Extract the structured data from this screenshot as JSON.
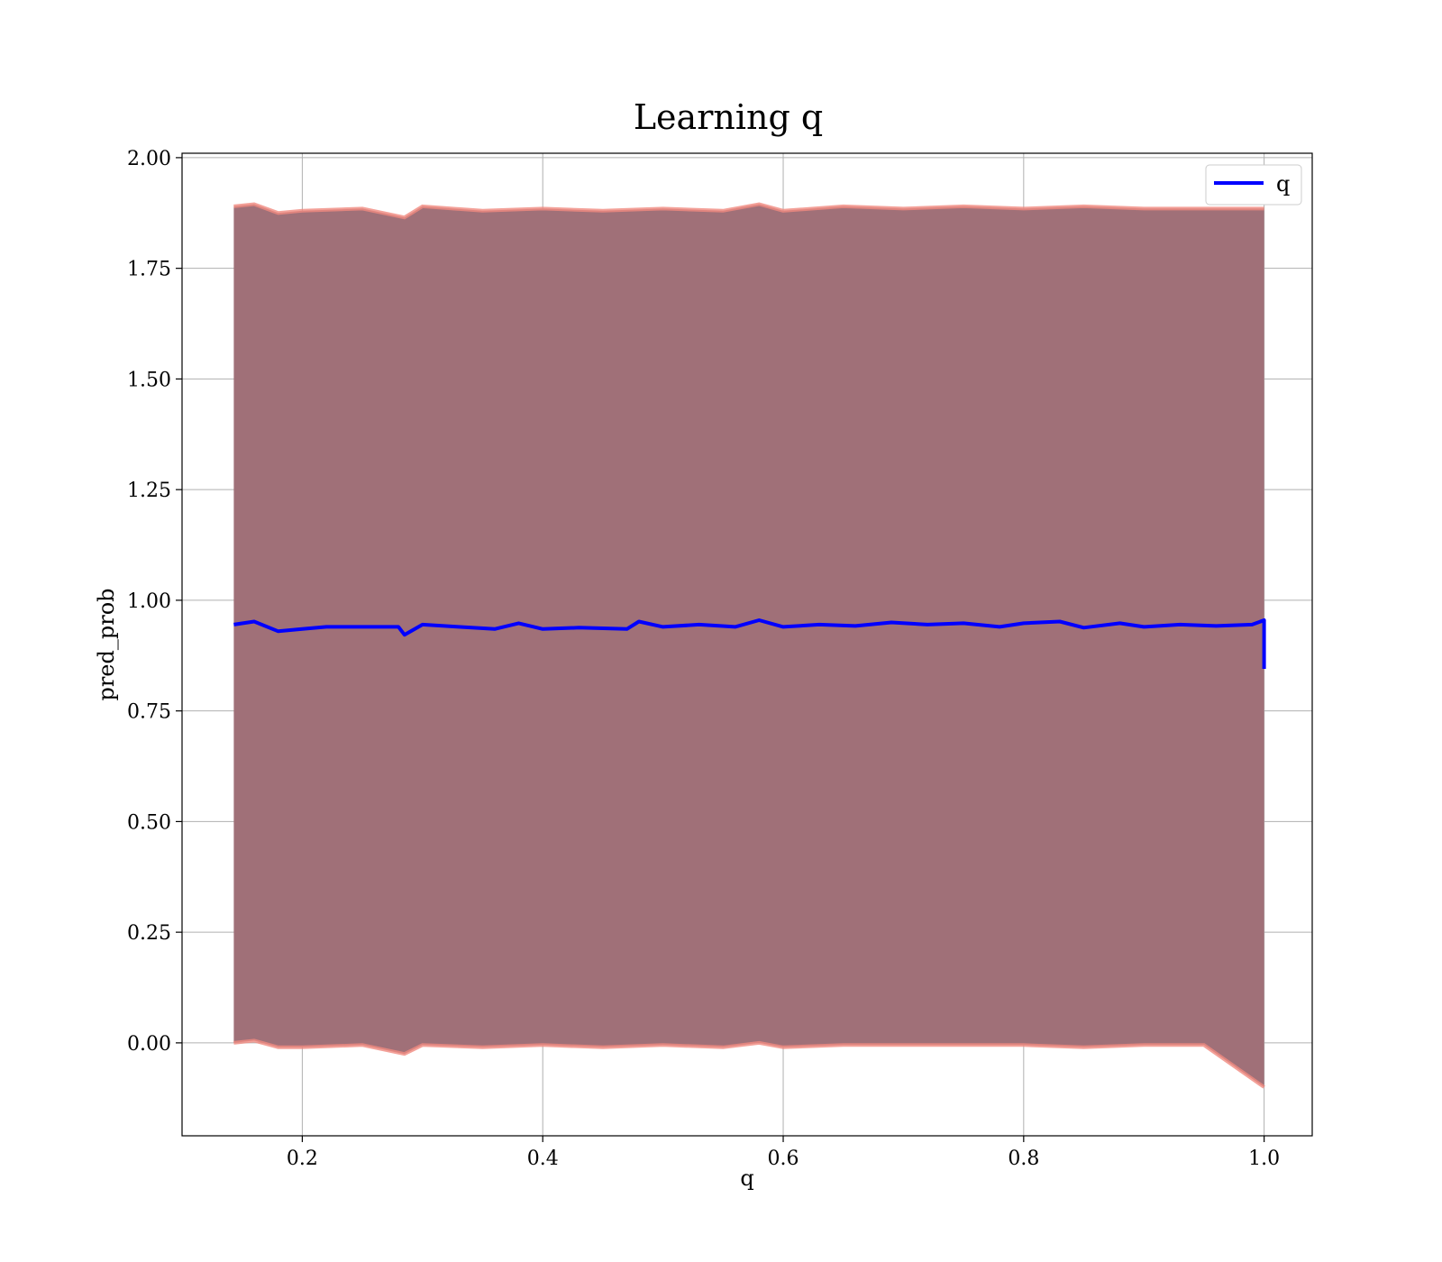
{
  "chart_data": {
    "type": "line",
    "title": "Learning q",
    "xlabel": "q",
    "ylabel": "pred_prob",
    "xlim": [
      0.1,
      1.04
    ],
    "ylim": [
      -0.21,
      2.01
    ],
    "xticks": [
      0.2,
      0.4,
      0.6,
      0.8,
      1.0
    ],
    "xtick_labels": [
      "0.2",
      "0.4",
      "0.6",
      "0.8",
      "1.0"
    ],
    "yticks": [
      0.0,
      0.25,
      0.5,
      0.75,
      1.0,
      1.25,
      1.5,
      1.75,
      2.0
    ],
    "ytick_labels": [
      "0.00",
      "0.25",
      "0.50",
      "0.75",
      "1.00",
      "1.25",
      "1.50",
      "1.75",
      "2.00"
    ],
    "grid": true,
    "legend": {
      "position": "top-right",
      "entries": [
        "q"
      ]
    },
    "colors": {
      "line": "#0000ff",
      "band_fill": "#a07078",
      "band_edge": "#f08a80",
      "grid": "#b0b0b0"
    },
    "series": [
      {
        "name": "q",
        "x": [
          0.143,
          0.16,
          0.18,
          0.2,
          0.22,
          0.25,
          0.28,
          0.285,
          0.3,
          0.33,
          0.36,
          0.38,
          0.4,
          0.43,
          0.47,
          0.48,
          0.5,
          0.53,
          0.56,
          0.58,
          0.6,
          0.63,
          0.66,
          0.69,
          0.72,
          0.75,
          0.78,
          0.8,
          0.83,
          0.85,
          0.88,
          0.9,
          0.93,
          0.96,
          0.99,
          1.0,
          1.0
        ],
        "y": [
          0.945,
          0.952,
          0.93,
          0.935,
          0.94,
          0.94,
          0.94,
          0.922,
          0.945,
          0.94,
          0.935,
          0.948,
          0.935,
          0.938,
          0.935,
          0.952,
          0.94,
          0.945,
          0.94,
          0.955,
          0.94,
          0.945,
          0.942,
          0.95,
          0.945,
          0.948,
          0.94,
          0.948,
          0.952,
          0.938,
          0.948,
          0.94,
          0.945,
          0.942,
          0.945,
          0.955,
          0.845
        ]
      }
    ],
    "band": {
      "x": [
        0.143,
        0.16,
        0.18,
        0.2,
        0.25,
        0.285,
        0.3,
        0.35,
        0.4,
        0.45,
        0.5,
        0.55,
        0.58,
        0.6,
        0.65,
        0.7,
        0.75,
        0.8,
        0.85,
        0.9,
        0.95,
        1.0
      ],
      "upper": [
        1.89,
        1.895,
        1.875,
        1.88,
        1.885,
        1.865,
        1.89,
        1.88,
        1.885,
        1.88,
        1.885,
        1.88,
        1.895,
        1.88,
        1.89,
        1.885,
        1.89,
        1.885,
        1.89,
        1.885,
        1.885,
        1.885
      ],
      "lower": [
        0.0,
        0.005,
        -0.01,
        -0.01,
        -0.005,
        -0.025,
        -0.005,
        -0.01,
        -0.005,
        -0.01,
        -0.005,
        -0.01,
        0.0,
        -0.01,
        -0.005,
        -0.005,
        -0.005,
        -0.005,
        -0.01,
        -0.005,
        -0.005,
        -0.1
      ]
    }
  }
}
